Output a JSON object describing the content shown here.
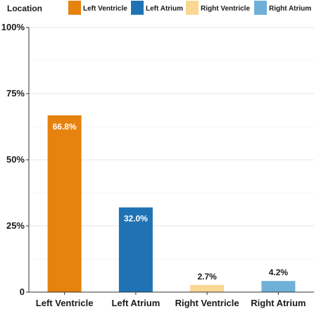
{
  "chart_data": {
    "type": "bar",
    "categories": [
      "Left Ventricle",
      "Left Atrium",
      "Right Ventricle",
      "Right Atrium"
    ],
    "values": [
      66.8,
      32.0,
      2.7,
      4.2
    ],
    "data_labels": [
      "66.8%",
      "32.0%",
      "2.7%",
      "4.2%"
    ],
    "colors": [
      "#E6820E",
      "#1F73B5",
      "#FAD792",
      "#6FB0D8"
    ],
    "yticks": [
      0,
      25,
      50,
      75,
      100
    ],
    "ytick_labels": [
      "0",
      "25%",
      "50%",
      "75%",
      "100%"
    ],
    "ylim": [
      0,
      100
    ],
    "title": "",
    "xlabel": "",
    "ylabel": "",
    "grid": "horizontal",
    "legend": {
      "title": "Location",
      "position": "top",
      "entries": [
        "Left Ventricle",
        "Left Atrium",
        "Right Ventricle",
        "Right Atrium"
      ]
    }
  }
}
